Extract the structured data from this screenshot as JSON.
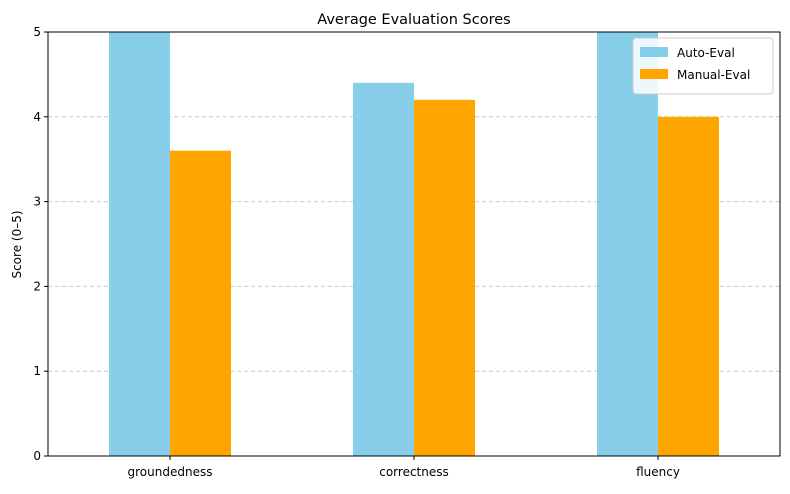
{
  "chart_data": {
    "type": "bar",
    "title": "Average Evaluation Scores",
    "xlabel": "",
    "ylabel": "Score (0–5)",
    "categories": [
      "groundedness",
      "correctness",
      "fluency"
    ],
    "series": [
      {
        "name": "Auto-Eval",
        "values": [
          5.0,
          4.4,
          5.0
        ],
        "color": "#87ceeb"
      },
      {
        "name": "Manual-Eval",
        "values": [
          3.6,
          4.2,
          4.0
        ],
        "color": "#ffa500"
      }
    ],
    "ylim": [
      0,
      5
    ],
    "yticks": [
      "0",
      "1",
      "2",
      "3",
      "4",
      "5"
    ],
    "grid": true,
    "legend_position": "top-right"
  }
}
